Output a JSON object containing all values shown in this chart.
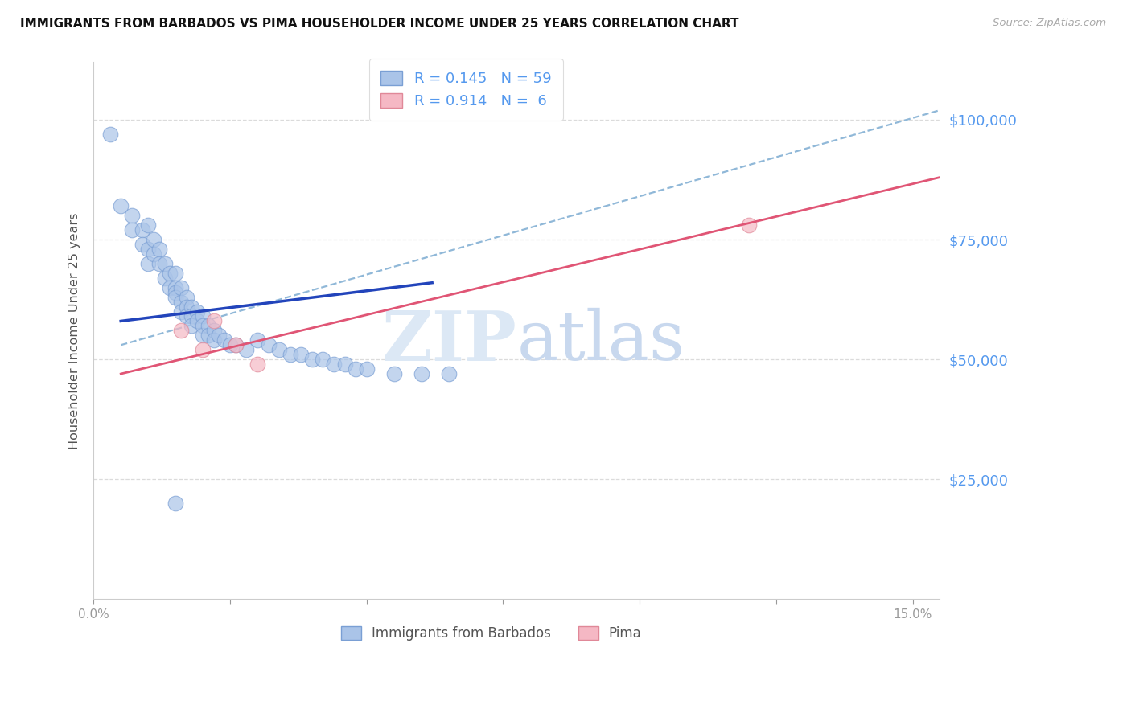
{
  "title": "IMMIGRANTS FROM BARBADOS VS PIMA HOUSEHOLDER INCOME UNDER 25 YEARS CORRELATION CHART",
  "source": "Source: ZipAtlas.com",
  "ylabel": "Householder Income Under 25 years",
  "y_tick_labels": [
    "$25,000",
    "$50,000",
    "$75,000",
    "$100,000"
  ],
  "y_tick_values": [
    25000,
    50000,
    75000,
    100000
  ],
  "xlim": [
    0.0,
    0.155
  ],
  "ylim": [
    0,
    112000
  ],
  "legend_label1": "Immigrants from Barbados",
  "legend_label2": "Pima",
  "blue_scatter_x": [
    0.003,
    0.005,
    0.007,
    0.007,
    0.009,
    0.009,
    0.01,
    0.01,
    0.01,
    0.011,
    0.011,
    0.012,
    0.012,
    0.013,
    0.013,
    0.014,
    0.014,
    0.015,
    0.015,
    0.015,
    0.015,
    0.016,
    0.016,
    0.016,
    0.017,
    0.017,
    0.017,
    0.018,
    0.018,
    0.018,
    0.019,
    0.019,
    0.02,
    0.02,
    0.02,
    0.021,
    0.021,
    0.022,
    0.022,
    0.023,
    0.024,
    0.025,
    0.026,
    0.028,
    0.03,
    0.032,
    0.034,
    0.036,
    0.038,
    0.04,
    0.042,
    0.044,
    0.046,
    0.048,
    0.05,
    0.055,
    0.06,
    0.065,
    0.015
  ],
  "blue_scatter_y": [
    97000,
    82000,
    80000,
    77000,
    77000,
    74000,
    78000,
    73000,
    70000,
    75000,
    72000,
    73000,
    70000,
    70000,
    67000,
    68000,
    65000,
    68000,
    65000,
    64000,
    63000,
    65000,
    62000,
    60000,
    63000,
    61000,
    59000,
    61000,
    59000,
    57000,
    60000,
    58000,
    59000,
    57000,
    55000,
    57000,
    55000,
    56000,
    54000,
    55000,
    54000,
    53000,
    53000,
    52000,
    54000,
    53000,
    52000,
    51000,
    51000,
    50000,
    50000,
    49000,
    49000,
    48000,
    48000,
    47000,
    47000,
    47000,
    20000
  ],
  "pink_scatter_x": [
    0.016,
    0.02,
    0.022,
    0.026,
    0.03,
    0.12
  ],
  "pink_scatter_y": [
    56000,
    52000,
    58000,
    53000,
    49000,
    78000
  ],
  "blue_line_x": [
    0.005,
    0.062
  ],
  "blue_line_y": [
    58000,
    66000
  ],
  "blue_dash_line_x": [
    0.005,
    0.155
  ],
  "blue_dash_line_y": [
    53000,
    102000
  ],
  "pink_line_x": [
    0.005,
    0.155
  ],
  "pink_line_y": [
    47000,
    88000
  ],
  "scatter_blue_color": "#aac4e8",
  "scatter_blue_edge": "#7a9fd4",
  "scatter_pink_color": "#f5b8c4",
  "scatter_pink_edge": "#e08898",
  "line_blue_color": "#2244bb",
  "line_pink_color": "#e05575",
  "line_dash_color": "#90b8d8",
  "watermark_zip_color": "#dce8f5",
  "watermark_atlas_color": "#c8d8ee",
  "title_color": "#111111",
  "axis_label_color": "#5599ee",
  "ylabel_color": "#555555",
  "grid_color": "#d8d8d8",
  "xtick_color": "#999999",
  "legend_edge_color": "#dddddd",
  "bottom_legend_text_color": "#555555"
}
